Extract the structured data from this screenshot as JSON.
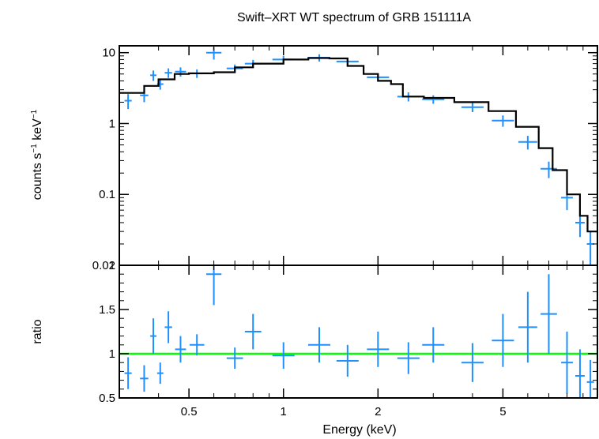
{
  "chart_data": [
    {
      "type": "scatter",
      "title": "Swift–XRT WT spectrum of GRB 151111A",
      "ylabel_parts": [
        "counts s",
        "−1",
        " keV",
        "−1"
      ],
      "x_scale": "log",
      "y_scale": "log",
      "xlim": [
        0.3,
        10.0
      ],
      "ylim": [
        0.01,
        12.5
      ],
      "y_ticks": [
        10,
        1,
        0.1,
        0.01
      ],
      "y_tick_labels": [
        "10",
        "1",
        "0.1",
        "0.01"
      ],
      "data_color": "#1e90ff",
      "model_color": "#000000",
      "series": [
        {
          "kind": "data",
          "points": [
            {
              "x": 0.32,
              "y": 2.1,
              "dy": 0.5
            },
            {
              "x": 0.36,
              "y": 2.5,
              "dy": 0.5
            },
            {
              "x": 0.385,
              "y": 4.8,
              "dy": 0.8
            },
            {
              "x": 0.405,
              "y": 3.6,
              "dy": 0.6
            },
            {
              "x": 0.43,
              "y": 5.2,
              "dy": 0.8
            },
            {
              "x": 0.47,
              "y": 5.4,
              "dy": 0.8
            },
            {
              "x": 0.53,
              "y": 5.1,
              "dy": 0.7
            },
            {
              "x": 0.6,
              "y": 10.0,
              "dy": 2.0
            },
            {
              "x": 0.7,
              "y": 6.0,
              "dy": 0.8
            },
            {
              "x": 0.8,
              "y": 7.0,
              "dy": 0.9
            },
            {
              "x": 1.0,
              "y": 8.0,
              "dy": 1.0
            },
            {
              "x": 1.3,
              "y": 8.5,
              "dy": 1.0
            },
            {
              "x": 1.6,
              "y": 7.5,
              "dy": 1.0
            },
            {
              "x": 2.0,
              "y": 4.5,
              "dy": 0.6
            },
            {
              "x": 2.5,
              "y": 2.4,
              "dy": 0.35
            },
            {
              "x": 3.0,
              "y": 2.2,
              "dy": 0.3
            },
            {
              "x": 4.0,
              "y": 1.7,
              "dy": 0.25
            },
            {
              "x": 5.0,
              "y": 1.1,
              "dy": 0.2
            },
            {
              "x": 6.0,
              "y": 0.55,
              "dy": 0.12
            },
            {
              "x": 7.0,
              "y": 0.23,
              "dy": 0.06
            },
            {
              "x": 8.0,
              "y": 0.09,
              "dy": 0.03
            },
            {
              "x": 8.8,
              "y": 0.04,
              "dy": 0.015
            },
            {
              "x": 9.5,
              "y": 0.02,
              "dy": 0.01
            }
          ]
        },
        {
          "kind": "model",
          "points": [
            {
              "x": 0.3,
              "y": 2.7
            },
            {
              "x": 0.36,
              "y": 3.4
            },
            {
              "x": 0.4,
              "y": 4.2
            },
            {
              "x": 0.45,
              "y": 5.0
            },
            {
              "x": 0.5,
              "y": 5.1
            },
            {
              "x": 0.6,
              "y": 5.3
            },
            {
              "x": 0.7,
              "y": 6.2
            },
            {
              "x": 0.8,
              "y": 7.0
            },
            {
              "x": 1.0,
              "y": 8.0
            },
            {
              "x": 1.2,
              "y": 8.4
            },
            {
              "x": 1.4,
              "y": 8.3
            },
            {
              "x": 1.6,
              "y": 6.5
            },
            {
              "x": 1.8,
              "y": 5.0
            },
            {
              "x": 2.0,
              "y": 4.0
            },
            {
              "x": 2.2,
              "y": 3.6
            },
            {
              "x": 2.4,
              "y": 2.4
            },
            {
              "x": 2.8,
              "y": 2.3
            },
            {
              "x": 3.5,
              "y": 2.0
            },
            {
              "x": 4.5,
              "y": 1.5
            },
            {
              "x": 5.5,
              "y": 0.9
            },
            {
              "x": 6.5,
              "y": 0.45
            },
            {
              "x": 7.2,
              "y": 0.22
            },
            {
              "x": 8.0,
              "y": 0.1
            },
            {
              "x": 8.8,
              "y": 0.05
            },
            {
              "x": 9.3,
              "y": 0.03
            },
            {
              "x": 10.0,
              "y": 0.03
            }
          ]
        }
      ]
    },
    {
      "type": "scatter",
      "xlabel": "Energy (keV)",
      "ylabel": "ratio",
      "x_scale": "log",
      "xlim": [
        0.3,
        10.0
      ],
      "ylim": [
        0.5,
        2.0
      ],
      "x_ticks": [
        0.5,
        1,
        2,
        5
      ],
      "x_tick_labels": [
        "0.5",
        "1",
        "2",
        "5"
      ],
      "y_ticks": [
        2,
        1.5,
        1,
        0.5
      ],
      "y_tick_labels": [
        "2",
        "1.5",
        "1",
        "0.5"
      ],
      "reference_line": {
        "y": 1.0,
        "color": "#00ff00"
      },
      "data_color": "#1e90ff",
      "series": [
        {
          "kind": "ratio",
          "points": [
            {
              "x": 0.32,
              "y": 0.78,
              "dy": 0.18
            },
            {
              "x": 0.36,
              "y": 0.72,
              "dy": 0.15
            },
            {
              "x": 0.385,
              "y": 1.2,
              "dy": 0.2
            },
            {
              "x": 0.405,
              "y": 0.78,
              "dy": 0.12
            },
            {
              "x": 0.43,
              "y": 1.3,
              "dy": 0.18
            },
            {
              "x": 0.47,
              "y": 1.05,
              "dy": 0.15
            },
            {
              "x": 0.53,
              "y": 1.1,
              "dy": 0.12
            },
            {
              "x": 0.6,
              "y": 1.9,
              "dy": 0.35
            },
            {
              "x": 0.7,
              "y": 0.95,
              "dy": 0.12
            },
            {
              "x": 0.8,
              "y": 1.25,
              "dy": 0.2
            },
            {
              "x": 1.0,
              "y": 0.98,
              "dy": 0.15
            },
            {
              "x": 1.3,
              "y": 1.1,
              "dy": 0.2
            },
            {
              "x": 1.6,
              "y": 0.92,
              "dy": 0.18
            },
            {
              "x": 2.0,
              "y": 1.05,
              "dy": 0.2
            },
            {
              "x": 2.5,
              "y": 0.95,
              "dy": 0.18
            },
            {
              "x": 3.0,
              "y": 1.1,
              "dy": 0.2
            },
            {
              "x": 4.0,
              "y": 0.9,
              "dy": 0.22
            },
            {
              "x": 5.0,
              "y": 1.15,
              "dy": 0.3
            },
            {
              "x": 6.0,
              "y": 1.3,
              "dy": 0.4
            },
            {
              "x": 7.0,
              "y": 1.45,
              "dy": 0.45
            },
            {
              "x": 8.0,
              "y": 0.9,
              "dy": 0.35
            },
            {
              "x": 8.8,
              "y": 0.75,
              "dy": 0.3
            },
            {
              "x": 9.5,
              "y": 0.68,
              "dy": 0.25
            }
          ]
        }
      ]
    }
  ]
}
